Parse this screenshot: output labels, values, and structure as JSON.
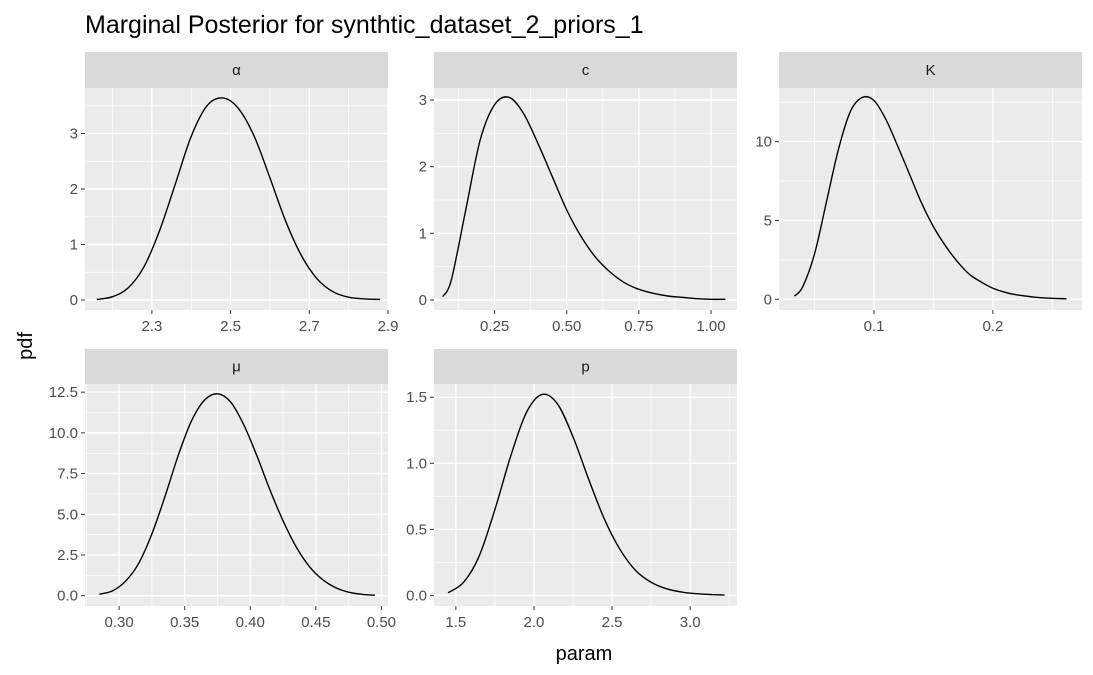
{
  "chart_data": {
    "type": "line",
    "title": "Marginal Posterior for synthtic_dataset_2_priors_1",
    "xlabel": "param",
    "ylabel": "pdf",
    "layout": "facet-wrap",
    "curve_color": "#000000",
    "panel_background": "#ebebeb",
    "strip_background": "#d9d9d9",
    "grid": true,
    "legend": "none",
    "panels": [
      {
        "strip": "α",
        "xlim": [
          2.13,
          2.9
        ],
        "ylim": [
          -0.18,
          3.82
        ],
        "xticks": [
          2.3,
          2.5,
          2.7,
          2.9
        ],
        "xtick_labels": [
          "2.3",
          "2.5",
          "2.7",
          "2.9"
        ],
        "yticks": [
          0,
          1,
          2,
          3
        ],
        "ytick_labels": [
          "0",
          "1",
          "2",
          "3"
        ],
        "x": [
          2.16,
          2.2,
          2.24,
          2.28,
          2.32,
          2.36,
          2.4,
          2.44,
          2.48,
          2.52,
          2.56,
          2.6,
          2.64,
          2.68,
          2.72,
          2.76,
          2.8,
          2.84,
          2.88
        ],
        "y": [
          0.01,
          0.06,
          0.22,
          0.6,
          1.26,
          2.1,
          2.95,
          3.5,
          3.64,
          3.45,
          2.95,
          2.2,
          1.42,
          0.8,
          0.38,
          0.15,
          0.05,
          0.02,
          0.01
        ]
      },
      {
        "strip": "c",
        "xlim": [
          0.04,
          1.09
        ],
        "ylim": [
          -0.15,
          3.18
        ],
        "xticks": [
          0.25,
          0.5,
          0.75,
          1.0
        ],
        "xtick_labels": [
          "0.25",
          "0.50",
          "0.75",
          "1.00"
        ],
        "yticks": [
          0,
          1,
          2,
          3
        ],
        "ytick_labels": [
          "0",
          "1",
          "2",
          "3"
        ],
        "x": [
          0.07,
          0.1,
          0.15,
          0.2,
          0.25,
          0.3,
          0.35,
          0.4,
          0.45,
          0.5,
          0.55,
          0.6,
          0.65,
          0.7,
          0.75,
          0.8,
          0.85,
          0.9,
          0.95,
          1.0,
          1.05
        ],
        "y": [
          0.05,
          0.3,
          1.35,
          2.4,
          2.93,
          3.04,
          2.8,
          2.35,
          1.85,
          1.35,
          0.95,
          0.64,
          0.42,
          0.26,
          0.16,
          0.1,
          0.06,
          0.04,
          0.02,
          0.01,
          0.01
        ]
      },
      {
        "strip": "K",
        "xlim": [
          0.02,
          0.275
        ],
        "ylim": [
          -0.68,
          13.4
        ],
        "xticks": [
          0.1,
          0.2
        ],
        "xtick_labels": [
          "0.1",
          "0.2"
        ],
        "yticks": [
          0,
          5,
          10
        ],
        "ytick_labels": [
          "0",
          "5",
          "10"
        ],
        "x": [
          0.033,
          0.04,
          0.05,
          0.06,
          0.07,
          0.08,
          0.09,
          0.1,
          0.11,
          0.12,
          0.13,
          0.14,
          0.15,
          0.16,
          0.17,
          0.18,
          0.19,
          0.2,
          0.21,
          0.22,
          0.24,
          0.262
        ],
        "y": [
          0.2,
          0.8,
          2.9,
          6.2,
          9.5,
          11.9,
          12.8,
          12.6,
          11.4,
          9.7,
          7.9,
          6.1,
          4.6,
          3.4,
          2.4,
          1.6,
          1.1,
          0.7,
          0.45,
          0.28,
          0.1,
          0.03
        ]
      },
      {
        "strip": "μ",
        "xlim": [
          0.274,
          0.505
        ],
        "ylim": [
          -0.63,
          13.0
        ],
        "xticks": [
          0.3,
          0.35,
          0.4,
          0.45,
          0.5
        ],
        "xtick_labels": [
          "0.30",
          "0.35",
          "0.40",
          "0.45",
          "0.50"
        ],
        "yticks": [
          0,
          2.5,
          5,
          7.5,
          10,
          12.5
        ],
        "ytick_labels": [
          "0.0",
          "2.5",
          "5.0",
          "7.5",
          "10.0",
          "12.5"
        ],
        "x": [
          0.285,
          0.295,
          0.305,
          0.315,
          0.325,
          0.335,
          0.345,
          0.355,
          0.365,
          0.375,
          0.385,
          0.395,
          0.405,
          0.415,
          0.425,
          0.435,
          0.445,
          0.455,
          0.465,
          0.475,
          0.485,
          0.495
        ],
        "y": [
          0.1,
          0.3,
          0.9,
          2.0,
          3.8,
          6.1,
          8.6,
          10.7,
          12.0,
          12.4,
          11.9,
          10.5,
          8.6,
          6.5,
          4.6,
          3.0,
          1.8,
          1.0,
          0.5,
          0.22,
          0.09,
          0.03
        ]
      },
      {
        "strip": "p",
        "xlim": [
          1.36,
          3.3
        ],
        "ylim": [
          -0.08,
          1.6
        ],
        "xticks": [
          1.5,
          2.0,
          2.5,
          3.0
        ],
        "xtick_labels": [
          "1.5",
          "2.0",
          "2.5",
          "3.0"
        ],
        "yticks": [
          0,
          0.5,
          1.0,
          1.5
        ],
        "ytick_labels": [
          "0.0",
          "0.5",
          "1.0",
          "1.5"
        ],
        "x": [
          1.45,
          1.55,
          1.65,
          1.75,
          1.85,
          1.95,
          2.05,
          2.15,
          2.25,
          2.35,
          2.45,
          2.55,
          2.65,
          2.75,
          2.85,
          2.95,
          3.05,
          3.15,
          3.22
        ],
        "y": [
          0.02,
          0.1,
          0.3,
          0.65,
          1.05,
          1.38,
          1.52,
          1.45,
          1.2,
          0.88,
          0.58,
          0.35,
          0.19,
          0.1,
          0.05,
          0.025,
          0.012,
          0.006,
          0.003
        ]
      }
    ]
  }
}
